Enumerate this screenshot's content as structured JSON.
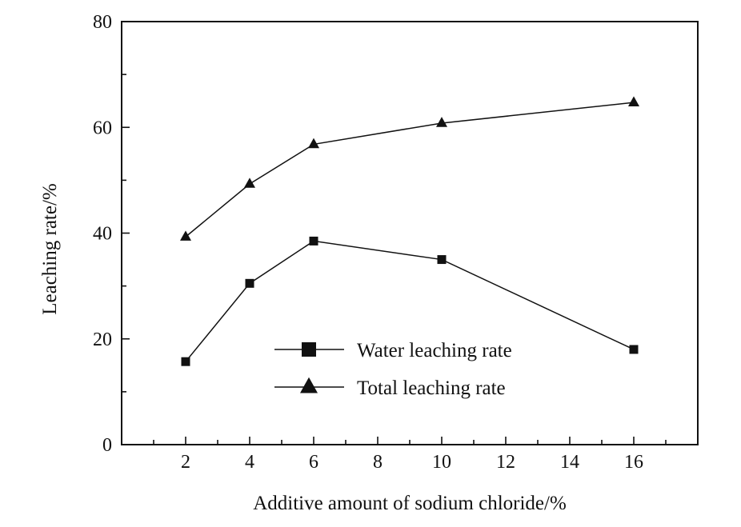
{
  "chart_data": {
    "type": "line",
    "title": "",
    "xlabel": "Additive amount of sodium chloride/%",
    "ylabel": "Leaching rate/%",
    "xlim": [
      0,
      18
    ],
    "ylim": [
      0,
      80
    ],
    "x_ticks": [
      2,
      4,
      6,
      8,
      10,
      12,
      14,
      16
    ],
    "y_ticks": [
      0,
      20,
      40,
      60,
      80
    ],
    "grid": false,
    "legend_position": "bottom-center",
    "series": [
      {
        "name": "Water leaching rate",
        "marker": "square",
        "color": "#111111",
        "x": [
          2,
          4,
          6,
          10,
          16
        ],
        "y": [
          15.7,
          30.5,
          38.5,
          35.0,
          18.0
        ]
      },
      {
        "name": "Total leaching rate",
        "marker": "triangle",
        "color": "#111111",
        "x": [
          2,
          4,
          6,
          10,
          16
        ],
        "y": [
          39.3,
          49.3,
          56.8,
          60.8,
          64.7
        ]
      }
    ]
  }
}
